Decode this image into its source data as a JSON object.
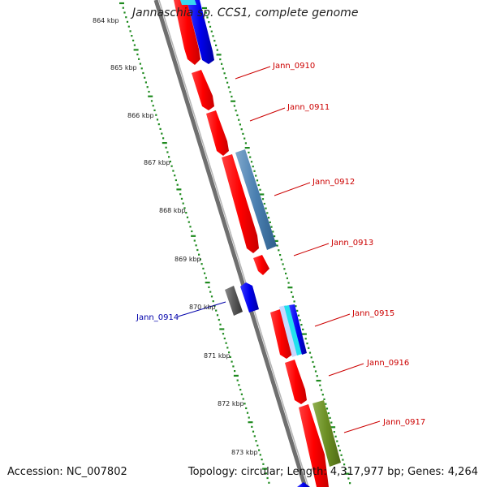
{
  "title": "Jannaschia sp. CCS1, complete genome",
  "accession": "Accession: NC_007802",
  "summary": "Topology: circular; Length: 4,317,977 bp; Genes: 4,264",
  "colors": {
    "backbone": "#7d7d7d",
    "tick": "#1e8a1e",
    "label_red": "#cc0000",
    "label_blue": "#0000aa"
  },
  "scale_labels": [
    "864 kbp",
    "865 kbp",
    "866 kbp",
    "867 kbp",
    "868 kbp",
    "869 kbp",
    "870 kbp",
    "871 kbp",
    "872 kbp",
    "873 kbp"
  ],
  "gene_labels": [
    {
      "text": "Jann_0910",
      "color": "#cc0000"
    },
    {
      "text": "Jann_0911",
      "color": "#cc0000"
    },
    {
      "text": "Jann_0912",
      "color": "#cc0000"
    },
    {
      "text": "Jann_0913",
      "color": "#cc0000"
    },
    {
      "text": "Jann_0914",
      "color": "#0000aa"
    },
    {
      "text": "Jann_0915",
      "color": "#cc0000"
    },
    {
      "text": "Jann_0916",
      "color": "#cc0000"
    },
    {
      "text": "Jann_0917",
      "color": "#cc0000"
    }
  ]
}
